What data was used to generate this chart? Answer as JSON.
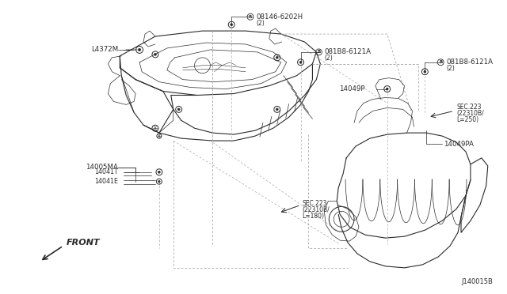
{
  "background_color": "#ffffff",
  "line_color": "#2a2a2a",
  "fig_width": 6.4,
  "fig_height": 3.72,
  "dpi": 100,
  "labels": {
    "L4372M": [
      0.155,
      0.758
    ],
    "08146_6202H_line1": "08146-6202H",
    "08146_6202H_line2": "(2)",
    "081B8_left_line1": "081B8-6121A",
    "081B8_left_line2": "(2)",
    "14049P": "14049P",
    "081B8_right_line1": "081B8-6121A",
    "081B8_right_line2": "(2)",
    "SEC223_right_l1": "SEC.223",
    "SEC223_right_l2": "(22310B/",
    "SEC223_right_l3": "L=250)",
    "14049PA": "14049PA",
    "14005MA": "14005MA",
    "14041T": "14041T",
    "14041E": "14041E",
    "SEC223_left_l1": "SEC.223",
    "SEC223_left_l2": "(22310B/",
    "SEC223_left_l3": "L=180)",
    "FRONT": "FRONT",
    "J140015B": "J140015B"
  }
}
